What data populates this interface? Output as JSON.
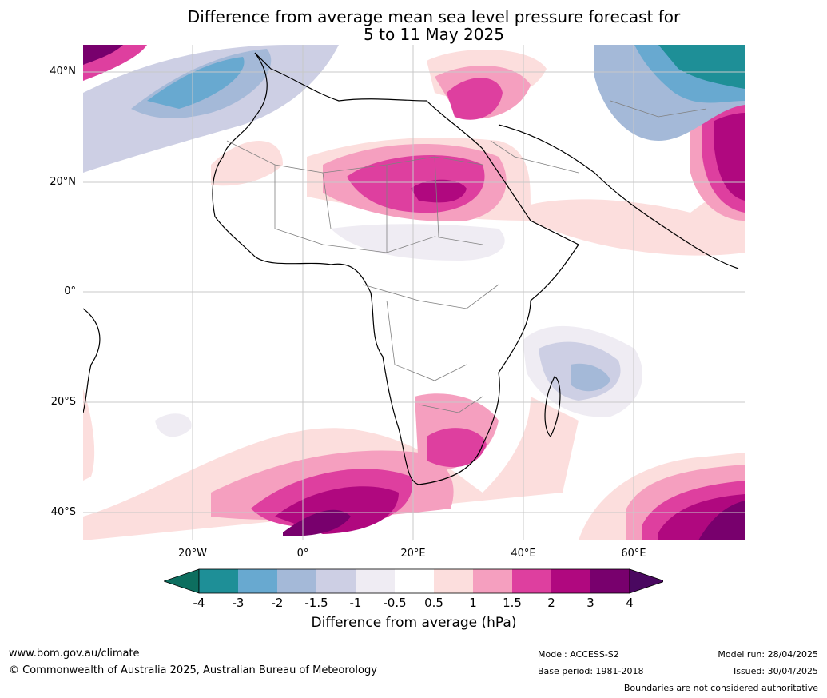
{
  "title": {
    "line1": "Difference from average mean sea level pressure forecast for",
    "line2": "5 to 11 May 2025"
  },
  "map": {
    "lat_labels": [
      "40°N",
      "20°N",
      "0°",
      "20°S",
      "40°S"
    ],
    "lon_labels": [
      "20°W",
      "0°",
      "20°E",
      "40°E",
      "60°E"
    ]
  },
  "colorbar": {
    "title": "Difference from average (hPa)",
    "tick_labels": [
      "-4",
      "-3",
      "-2",
      "-1.5",
      "-1",
      "-0.5",
      "0.5",
      "1",
      "1.5",
      "2",
      "3",
      "4"
    ],
    "colors": [
      "#0d6e5f",
      "#1e8f97",
      "#68a9d0",
      "#a4b9d8",
      "#cdcfe4",
      "#efecf3",
      "#ffffff",
      "#fcdedd",
      "#f59fbf",
      "#de3f9f",
      "#b0087f",
      "#78006d",
      "#4a0860"
    ]
  },
  "footer": {
    "website": "www.bom.gov.au/climate",
    "copyright": "© Commonwealth of Australia 2025, Australian Bureau of Meteorology",
    "model": "Model: ACCESS-S2",
    "base_period": "Base period: 1981-2018",
    "model_run": "Model run: 28/04/2025",
    "issued": "Issued: 30/04/2025",
    "disclaimer": "Boundaries are not considered authoritative"
  }
}
